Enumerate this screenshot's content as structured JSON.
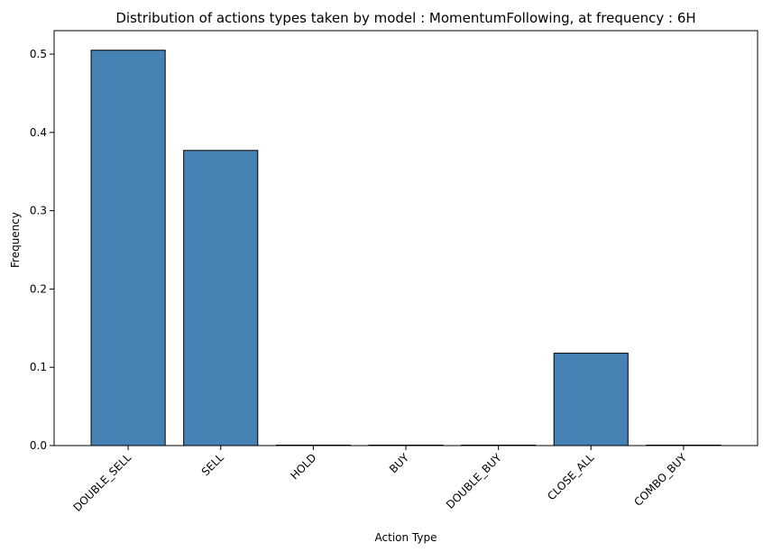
{
  "chart_data": {
    "type": "bar",
    "title": "Distribution of actions types taken by model : MomentumFollowing, at frequency : 6H",
    "xlabel": "Action Type",
    "ylabel": "Frequency",
    "categories": [
      "DOUBLE_SELL",
      "SELL",
      "HOLD",
      "BUY",
      "DOUBLE_BUY",
      "CLOSE_ALL",
      "COMBO_BUY"
    ],
    "values": [
      0.505,
      0.377,
      0.0,
      0.0,
      0.0,
      0.118,
      0.0
    ],
    "yticks": [
      "0.0",
      "0.1",
      "0.2",
      "0.3",
      "0.4",
      "0.5"
    ],
    "ylim": [
      0,
      0.53
    ],
    "grid": false,
    "bar_color": "#4682b4",
    "edge_color": "#000000"
  }
}
